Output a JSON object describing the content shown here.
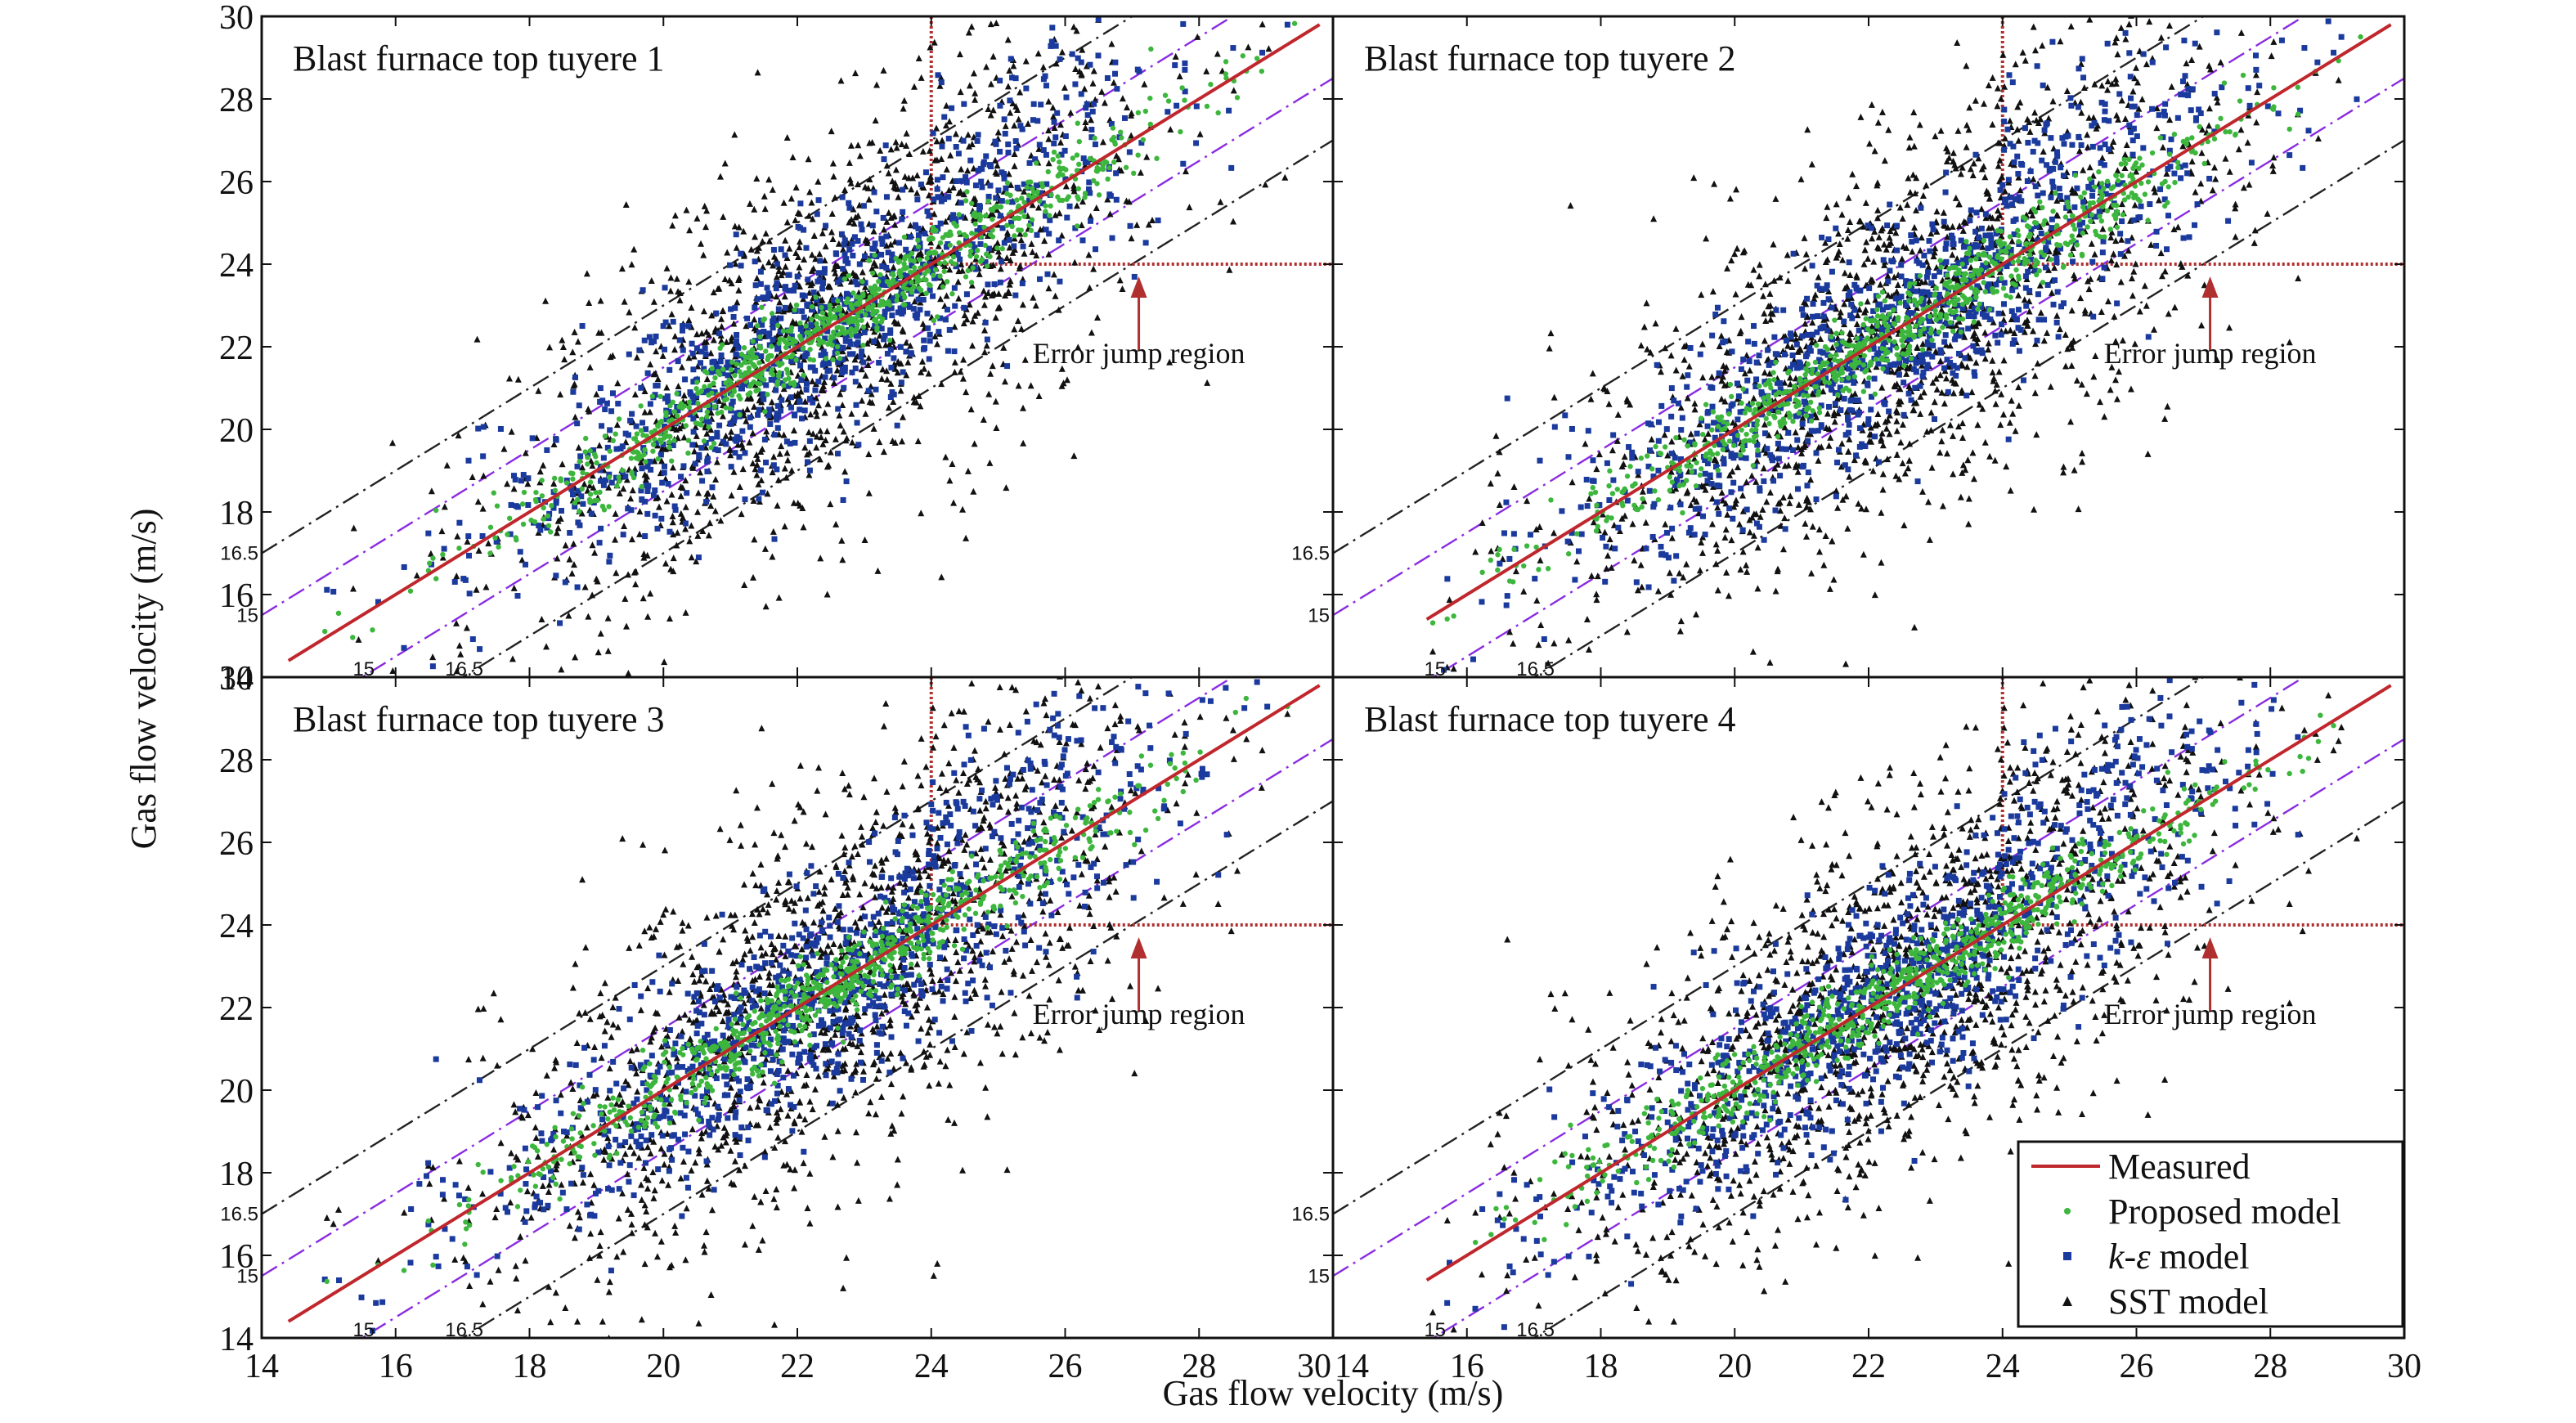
{
  "figure": {
    "ylabel": "Gas flow velocity (m/s)",
    "xlabel": "Gas flow velocity (m/s)"
  },
  "chart_data": {
    "type": "scatter",
    "grid": false,
    "layout": "2x2 panels with shared axes",
    "x_axis": {
      "label": "Gas flow velocity (m/s)",
      "range": [
        14,
        30
      ],
      "ticks": [
        14,
        16,
        18,
        20,
        22,
        24,
        26,
        28,
        30
      ]
    },
    "y_axis": {
      "label": "Gas flow velocity (m/s)",
      "range": [
        14,
        30
      ],
      "ticks": [
        14,
        16,
        18,
        20,
        22,
        24,
        26,
        28,
        30
      ]
    },
    "legend": {
      "placement": "lower-right of bottom-right panel",
      "entries": [
        {
          "label": "Measured",
          "marker": "line",
          "color": "#c0272d"
        },
        {
          "label": "Proposed model",
          "marker": "dot",
          "color": "#3cb63c"
        },
        {
          "label": "k-ε model",
          "label_parts": [
            "k",
            "-",
            "ε",
            " model"
          ],
          "marker": "square",
          "color": "#1a3a9e"
        },
        {
          "label": "SST model",
          "marker": "triangle",
          "color": "#111111"
        }
      ]
    },
    "reference_lines": {
      "inner_band_color": "#8a2be2",
      "outer_band_color": "#222222",
      "inner_band_label": "15",
      "outer_band_label": "16.5",
      "error_threshold": 24,
      "threshold_color": "#b03030"
    },
    "approx_spread": {
      "Proposed model": 0.45,
      "k-ε model": 1.3,
      "SST model": 2.6
    },
    "panels": [
      {
        "title": "Blast furnace top tuyere 1",
        "annotation": "Error jump region",
        "measured_range": [
          14.4,
          29.8
        ],
        "point_range": [
          14.3,
          29.5
        ]
      },
      {
        "title": "Blast furnace top tuyere 2",
        "annotation": "Error jump region",
        "measured_range": [
          15.4,
          29.8
        ],
        "point_range": [
          15.4,
          29.5
        ]
      },
      {
        "title": "Blast furnace top tuyere 3",
        "annotation": "Error jump region",
        "measured_range": [
          14.4,
          29.8
        ],
        "point_range": [
          14.3,
          29.5
        ]
      },
      {
        "title": "Blast furnace top tuyere 4",
        "annotation": "Error jump region",
        "measured_range": [
          15.4,
          29.8
        ],
        "point_range": [
          15.4,
          29.5
        ]
      }
    ]
  }
}
